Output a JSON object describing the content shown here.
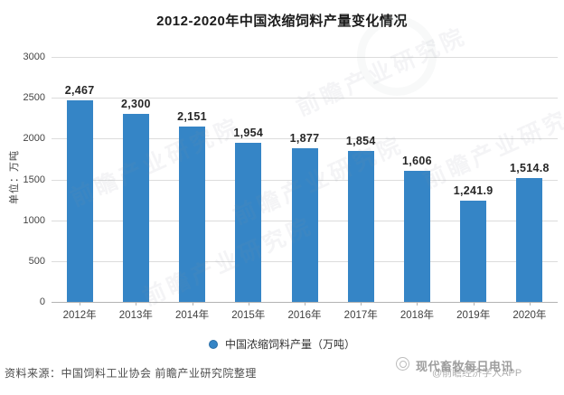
{
  "title": "2012-2020年中国浓缩饲料产量变化情况",
  "chart_data": {
    "type": "bar",
    "categories": [
      "2012年",
      "2013年",
      "2014年",
      "2015年",
      "2016年",
      "2017年",
      "2018年",
      "2019年",
      "2020年"
    ],
    "values": [
      2467,
      2300,
      2151,
      1954,
      1877,
      1854,
      1606,
      1241.9,
      1514.8
    ],
    "value_labels": [
      "2,467",
      "2,300",
      "2,151",
      "1,954",
      "1,877",
      "1,854",
      "1,606",
      "1,241.9",
      "1,514.8"
    ],
    "title": "2012-2020年中国浓缩饲料产量变化情况",
    "xlabel": "",
    "ylabel": "单位：万吨",
    "ylim": [
      0,
      3000
    ],
    "yticks": [
      0,
      500,
      1000,
      1500,
      2000,
      2500,
      3000
    ],
    "grid": true,
    "legend": "中国浓缩饲料产量（万吨）",
    "legend_position": "bottom",
    "bar_color": "#3585c6"
  },
  "footer": {
    "source": "资料来源：中国饲料工业协会 前瞻产业研究院整理"
  },
  "watermarks": {
    "diagonal": "前瞻产业研究院",
    "bottom_right_1": "现代畜牧每日电讯",
    "bottom_right_2": "@前瞻经济学人APP"
  }
}
